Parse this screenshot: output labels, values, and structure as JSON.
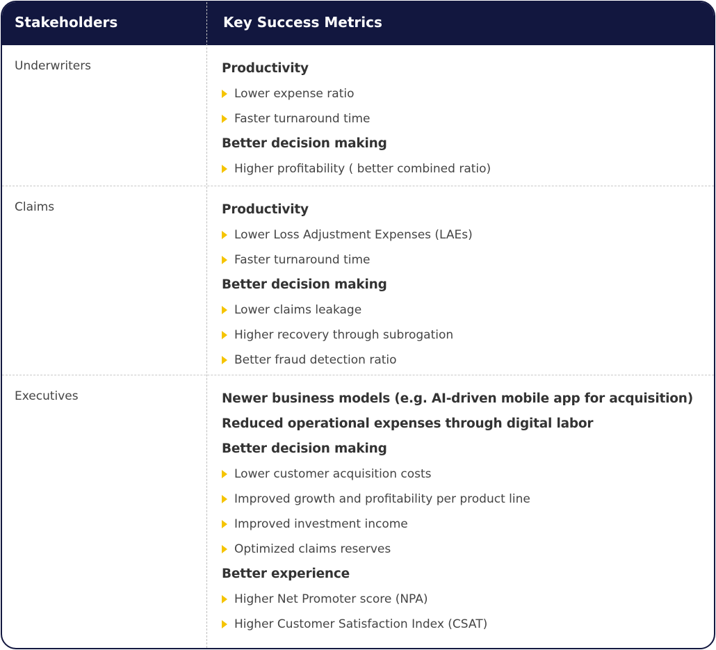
{
  "header": {
    "stakeholders": "Stakeholders",
    "metrics": "Key Success Metrics"
  },
  "colors": {
    "header_bg": "#12173f",
    "bullet": "#f5c400"
  },
  "rows": [
    {
      "stakeholder": "Underwriters",
      "lines": [
        {
          "type": "heading",
          "text": "Productivity"
        },
        {
          "type": "item",
          "text": "Lower expense ratio"
        },
        {
          "type": "item",
          "text": "Faster turnaround time"
        },
        {
          "type": "heading",
          "text": "Better decision making"
        },
        {
          "type": "item",
          "text": "Higher profitability ( better combined ratio)"
        }
      ]
    },
    {
      "stakeholder": "Claims",
      "lines": [
        {
          "type": "heading",
          "text": "Productivity"
        },
        {
          "type": "item",
          "text": "Lower Loss Adjustment Expenses (LAEs)"
        },
        {
          "type": "item",
          "text": "Faster turnaround time"
        },
        {
          "type": "heading",
          "text": "Better decision making"
        },
        {
          "type": "item",
          "text": "Lower claims leakage"
        },
        {
          "type": "item",
          "text": "Higher recovery through subrogation"
        },
        {
          "type": "item",
          "text": "Better fraud detection ratio"
        }
      ]
    },
    {
      "stakeholder": "Executives",
      "lines": [
        {
          "type": "heading",
          "text": "Newer business models (e.g. AI-driven mobile app for acquisition)"
        },
        {
          "type": "heading",
          "text": "Reduced operational expenses through digital labor"
        },
        {
          "type": "heading",
          "text": "Better decision making"
        },
        {
          "type": "item",
          "text": "Lower customer acquisition costs"
        },
        {
          "type": "item",
          "text": "Improved growth and profitability per product line"
        },
        {
          "type": "item",
          "text": "Improved investment income"
        },
        {
          "type": "item",
          "text": "Optimized claims reserves"
        },
        {
          "type": "heading",
          "text": "Better experience"
        },
        {
          "type": "item",
          "text": "Higher Net Promoter score (NPA)"
        },
        {
          "type": "item",
          "text": "Higher Customer Satisfaction Index (CSAT)"
        }
      ]
    }
  ]
}
